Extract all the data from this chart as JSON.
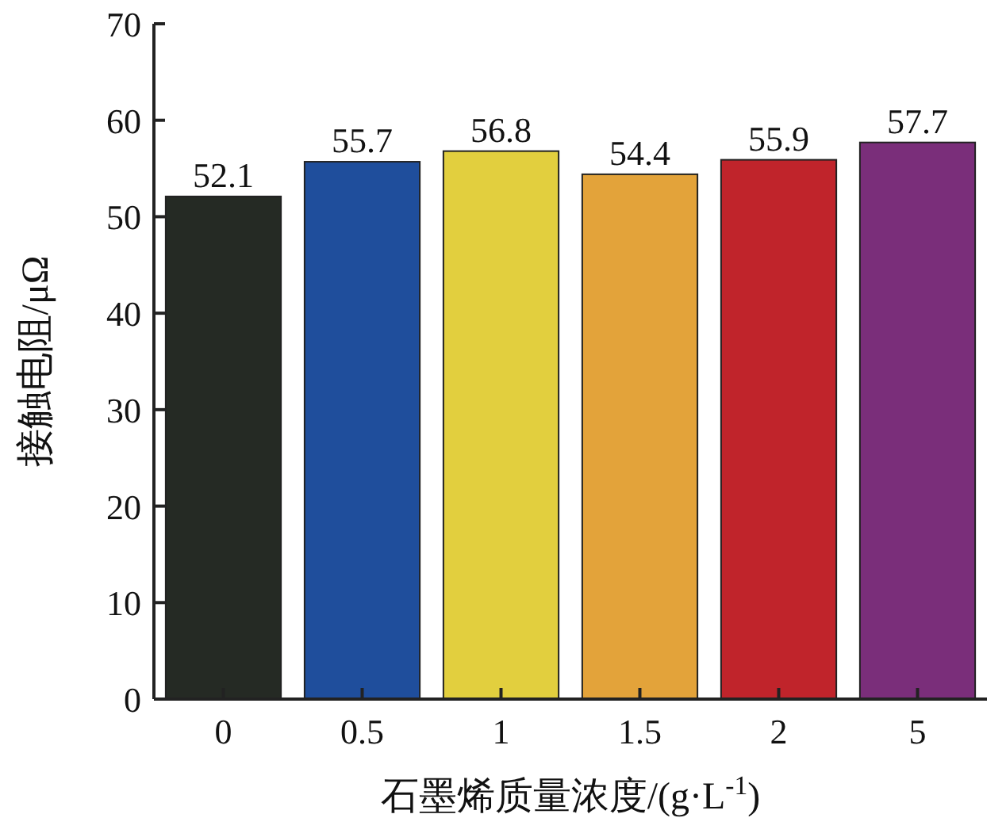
{
  "chart_data": {
    "type": "bar",
    "categories": [
      "0",
      "0.5",
      "1",
      "1.5",
      "2",
      "5"
    ],
    "values": [
      52.1,
      55.7,
      56.8,
      54.4,
      55.9,
      57.7
    ],
    "colors": [
      "#252a24",
      "#1f4e9c",
      "#e2cf3e",
      "#e3a33a",
      "#c0242b",
      "#7a2e7a"
    ],
    "ylim": [
      0,
      70
    ],
    "yticks": [
      0,
      10,
      20,
      30,
      40,
      50,
      60,
      70
    ],
    "xlabel": "石墨烯质量浓度/(g·L$^{-1}$)",
    "ylabel": "接触电阻/μΩ",
    "data_labels": true
  }
}
